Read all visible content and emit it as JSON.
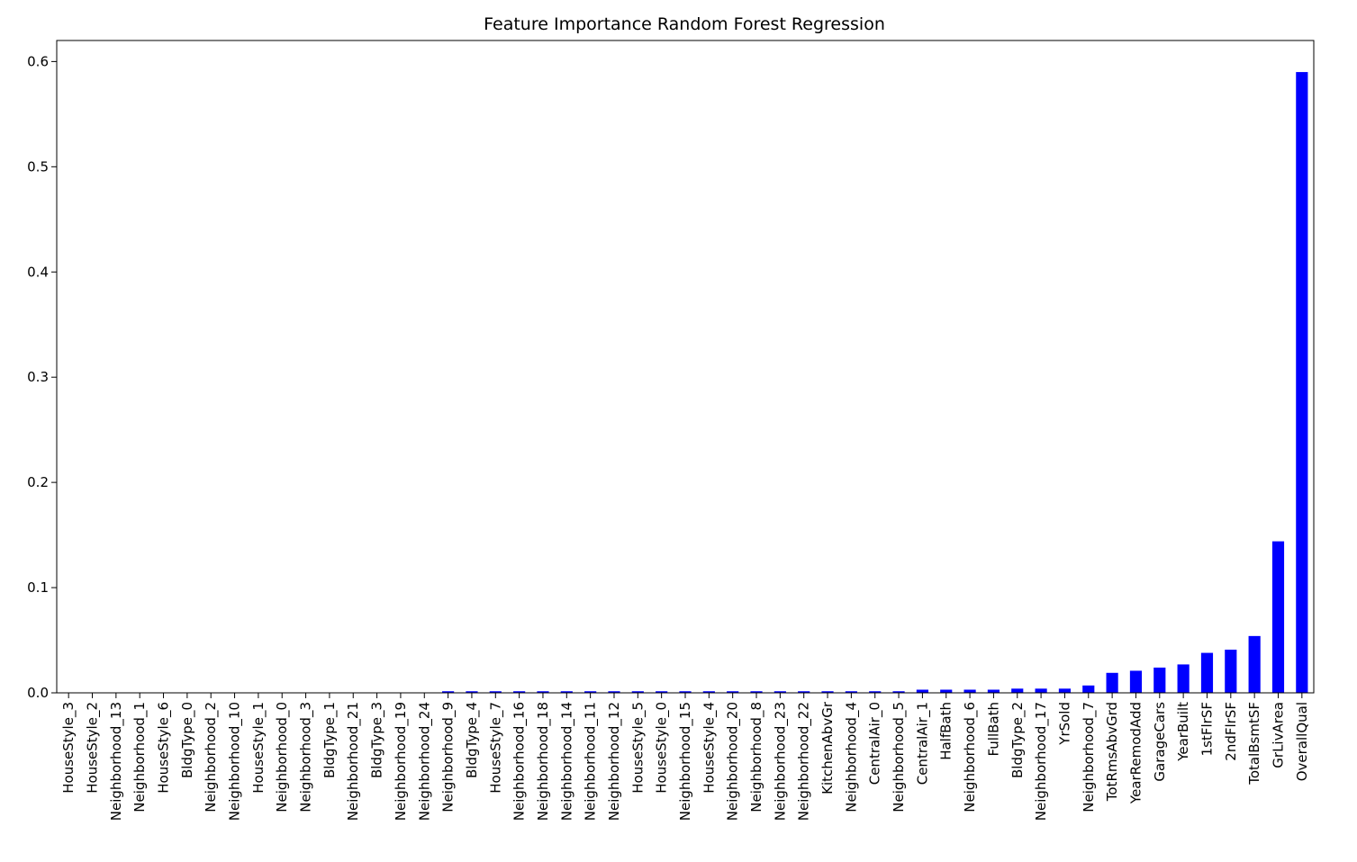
{
  "chart_data": {
    "type": "bar",
    "title": "Feature Importance Random Forest Regression",
    "xlabel": "",
    "ylabel": "",
    "ylim": [
      0,
      0.62
    ],
    "yticks": [
      "0.0",
      "0.1",
      "0.2",
      "0.3",
      "0.4",
      "0.5",
      "0.6"
    ],
    "grid": false,
    "legend": "none",
    "bar_color": "#0000ff",
    "categories": [
      "HouseStyle_3",
      "HouseStyle_2",
      "Neighborhood_13",
      "Neighborhood_1",
      "HouseStyle_6",
      "BldgType_0",
      "Neighborhood_2",
      "Neighborhood_10",
      "HouseStyle_1",
      "Neighborhood_0",
      "Neighborhood_3",
      "BldgType_1",
      "Neighborhood_21",
      "BldgType_3",
      "Neighborhood_19",
      "Neighborhood_24",
      "Neighborhood_9",
      "BldgType_4",
      "HouseStyle_7",
      "Neighborhood_16",
      "Neighborhood_18",
      "Neighborhood_14",
      "Neighborhood_11",
      "Neighborhood_12",
      "HouseStyle_5",
      "HouseStyle_0",
      "Neighborhood_15",
      "HouseStyle_4",
      "Neighborhood_20",
      "Neighborhood_8",
      "Neighborhood_23",
      "Neighborhood_22",
      "KitchenAbvGr",
      "Neighborhood_4",
      "CentralAir_0",
      "Neighborhood_5",
      "CentralAir_1",
      "HalfBath",
      "Neighborhood_6",
      "FullBath",
      "BldgType_2",
      "Neighborhood_17",
      "YrSold",
      "Neighborhood_7",
      "TotRmsAbvGrd",
      "YearRemodAdd",
      "GarageCars",
      "YearBuilt",
      "1stFlrSF",
      "2ndFlrSF",
      "TotalBsmtSF",
      "GrLivArea",
      "OverallQual"
    ],
    "values": [
      0.0,
      0.0,
      0.0,
      0.0,
      0.0,
      0.0,
      0.0,
      0.0,
      0.0,
      0.0,
      0.0,
      0.0,
      0.0,
      0.0,
      0.0,
      0.0,
      0.0015,
      0.0015,
      0.0015,
      0.0015,
      0.0015,
      0.0015,
      0.0015,
      0.0015,
      0.0015,
      0.0015,
      0.0015,
      0.0015,
      0.0015,
      0.0015,
      0.0015,
      0.0015,
      0.0015,
      0.0015,
      0.0015,
      0.0015,
      0.003,
      0.003,
      0.003,
      0.003,
      0.004,
      0.004,
      0.004,
      0.007,
      0.019,
      0.021,
      0.024,
      0.027,
      0.038,
      0.041,
      0.054,
      0.144,
      0.59
    ]
  }
}
